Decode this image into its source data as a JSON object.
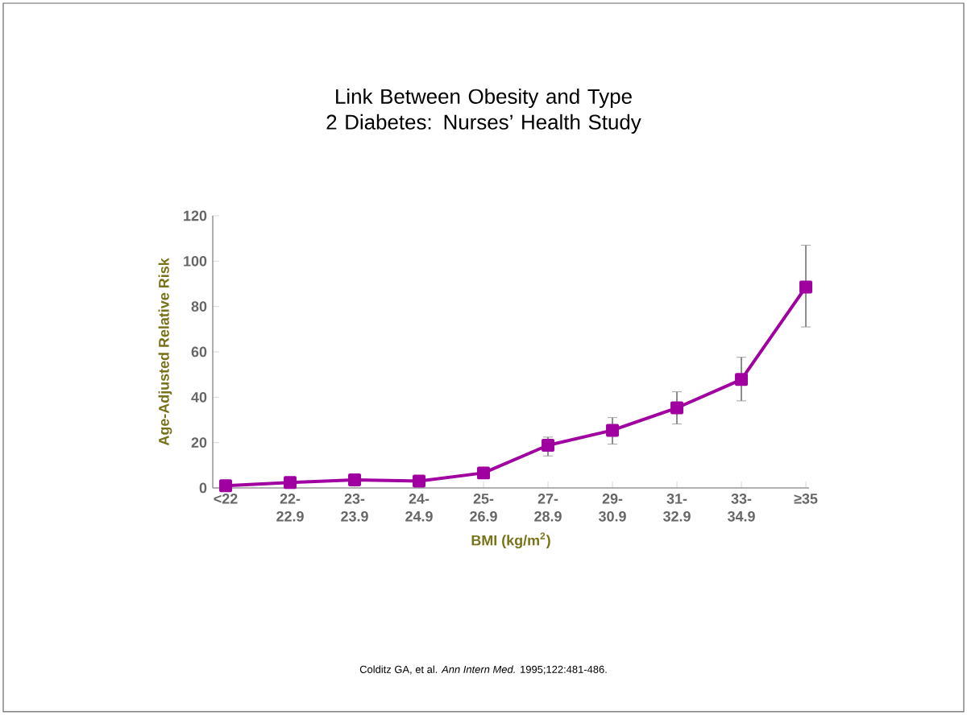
{
  "chart_data": {
    "type": "line",
    "title": "Link Between Obesity and Type 2 Diabetes: Nurses’ Health Study",
    "xlabel": "BMI (kg/m$^{2}$)",
    "ylabel": "Age-Adjusted Relative Risk",
    "categories": [
      "<22",
      "22-22.9",
      "23-23.9",
      "24-24.9",
      "25-26.9",
      "27-28.9",
      "29-30.9",
      "31-32.9",
      "33-34.9",
      "≥35"
    ],
    "series": [
      {
        "color": "#a000a0",
        "values": [
          1.0,
          2.4,
          3.5,
          3.0,
          6.6,
          18.8,
          25.4,
          35.3,
          47.8,
          88.6
        ],
        "errors": [
          null,
          null,
          null,
          null,
          null,
          [
            14.1,
            22.4
          ],
          [
            19.3,
            31.0
          ],
          [
            28.2,
            42.4
          ],
          [
            38.4,
            57.6
          ],
          [
            71.0,
            107.0
          ]
        ]
      }
    ],
    "ylim": [
      0,
      120
    ],
    "yticks": [
      0,
      20,
      40,
      60,
      80,
      100,
      120
    ],
    "marker": "square",
    "line_style": "solid",
    "grid": false,
    "annotations": [
      "Colditz GA, et al. *Ann Intern Med.* 1995;122:481-486."
    ]
  }
}
